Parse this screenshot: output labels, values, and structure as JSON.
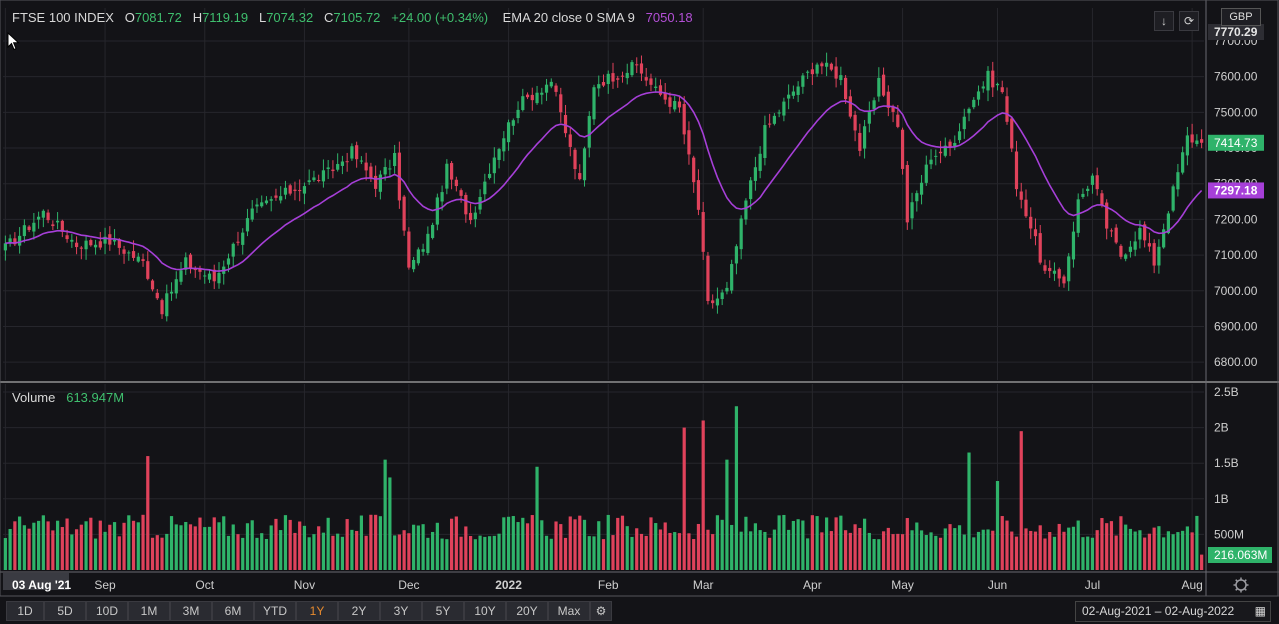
{
  "header": {
    "instrument": "FTSE 100 INDEX",
    "open_label": "O",
    "open": "7081.72",
    "high_label": "H",
    "high": "7119.19",
    "low_label": "L",
    "low": "7074.32",
    "close_label": "C",
    "close": "7105.72",
    "change": "+24.00 (+0.34%)",
    "indicator_label": "EMA 20 close 0 SMA 9",
    "indicator_value": "7050.18"
  },
  "volume_header": {
    "label": "Volume",
    "value": "613.947M"
  },
  "currency": "GBP",
  "price_tags": {
    "top": "7770.29",
    "last": "7414.73",
    "ema": "7297.18",
    "volume": "216.063M"
  },
  "ranges": [
    "1D",
    "5D",
    "10D",
    "1M",
    "3M",
    "6M",
    "YTD",
    "1Y",
    "2Y",
    "3Y",
    "5Y",
    "10Y",
    "20Y",
    "Max"
  ],
  "active_range": "1Y",
  "date_range": {
    "from": "02-Aug-2021",
    "sep": "–",
    "to": "02-Aug-2022"
  },
  "colors": {
    "up": "#2fb36a",
    "down": "#e0425b",
    "ema": "#a63fd8",
    "background": "#131317",
    "grid": "#26262c",
    "active_range": "#e88b2e"
  },
  "icons": {
    "download": "download-icon",
    "fullscreen": "fullscreen-icon",
    "settings": "settings-icon",
    "calendar": "calendar-icon",
    "crosshair": "crosshair-settings-icon"
  },
  "chart_data": [
    {
      "type": "candlestick",
      "title": "FTSE 100 INDEX",
      "ylim": [
        6750,
        7770
      ],
      "yticks": [
        6800,
        6900,
        7000,
        7100,
        7200,
        7300,
        7400,
        7500,
        7600,
        7700
      ],
      "ytick_labels": [
        "6800.00",
        "6900.00",
        "7000.00",
        "7100.00",
        "7200.00",
        "7300.00",
        "7400.00",
        "7500.00",
        "7600.00",
        "7700.00"
      ],
      "x_axis": {
        "labels": [
          "03 Aug '21",
          "Sep",
          "Oct",
          "Nov",
          "Dec",
          "2022",
          "Feb",
          "Mar",
          "Apr",
          "May",
          "Jun",
          "Jul",
          "Aug"
        ],
        "label_index": [
          0,
          21,
          42,
          63,
          85,
          106,
          127,
          147,
          170,
          189,
          209,
          229,
          250
        ],
        "bold": [
          "2022"
        ],
        "highlighted": [
          "03 Aug '21"
        ]
      },
      "anchors": [
        {
          "i": 0,
          "c": 7120
        },
        {
          "i": 8,
          "c": 7220
        },
        {
          "i": 15,
          "c": 7130
        },
        {
          "i": 22,
          "c": 7140
        },
        {
          "i": 29,
          "c": 7080
        },
        {
          "i": 33,
          "c": 6950
        },
        {
          "i": 38,
          "c": 7080
        },
        {
          "i": 44,
          "c": 7030
        },
        {
          "i": 52,
          "c": 7220
        },
        {
          "i": 60,
          "c": 7280
        },
        {
          "i": 68,
          "c": 7330
        },
        {
          "i": 73,
          "c": 7390
        },
        {
          "i": 78,
          "c": 7300
        },
        {
          "i": 82,
          "c": 7370
        },
        {
          "i": 85,
          "c": 7060
        },
        {
          "i": 89,
          "c": 7150
        },
        {
          "i": 93,
          "c": 7340
        },
        {
          "i": 98,
          "c": 7200
        },
        {
          "i": 103,
          "c": 7380
        },
        {
          "i": 108,
          "c": 7520
        },
        {
          "i": 115,
          "c": 7590
        },
        {
          "i": 121,
          "c": 7300
        },
        {
          "i": 124,
          "c": 7580
        },
        {
          "i": 133,
          "c": 7630
        },
        {
          "i": 137,
          "c": 7560
        },
        {
          "i": 142,
          "c": 7510
        },
        {
          "i": 146,
          "c": 7230
        },
        {
          "i": 148,
          "c": 6960
        },
        {
          "i": 152,
          "c": 7000
        },
        {
          "i": 156,
          "c": 7250
        },
        {
          "i": 160,
          "c": 7450
        },
        {
          "i": 166,
          "c": 7560
        },
        {
          "i": 171,
          "c": 7640
        },
        {
          "i": 176,
          "c": 7600
        },
        {
          "i": 180,
          "c": 7400
        },
        {
          "i": 184,
          "c": 7580
        },
        {
          "i": 188,
          "c": 7470
        },
        {
          "i": 190,
          "c": 7200
        },
        {
          "i": 195,
          "c": 7380
        },
        {
          "i": 199,
          "c": 7400
        },
        {
          "i": 203,
          "c": 7520
        },
        {
          "i": 207,
          "c": 7600
        },
        {
          "i": 210,
          "c": 7560
        },
        {
          "i": 213,
          "c": 7300
        },
        {
          "i": 216,
          "c": 7180
        },
        {
          "i": 219,
          "c": 7050
        },
        {
          "i": 223,
          "c": 7030
        },
        {
          "i": 226,
          "c": 7250
        },
        {
          "i": 229,
          "c": 7320
        },
        {
          "i": 232,
          "c": 7180
        },
        {
          "i": 235,
          "c": 7100
        },
        {
          "i": 239,
          "c": 7170
        },
        {
          "i": 242,
          "c": 7080
        },
        {
          "i": 246,
          "c": 7280
        },
        {
          "i": 249,
          "c": 7430
        },
        {
          "i": 252,
          "c": 7414.73
        }
      ],
      "last_close": 7414.73,
      "period_high": 7687,
      "period_low": 6790
    },
    {
      "type": "bar",
      "series": [
        {
          "name": "Volume"
        }
      ],
      "ylim": [
        0,
        2500000000
      ],
      "yticks": [
        500000000,
        1000000000,
        1500000000,
        2000000000,
        2500000000
      ],
      "ytick_labels": [
        "500M",
        "1B",
        "1.5B",
        "2B",
        "2.5B"
      ],
      "last_value": "216.063M",
      "peak_value": 2300000000
    }
  ]
}
